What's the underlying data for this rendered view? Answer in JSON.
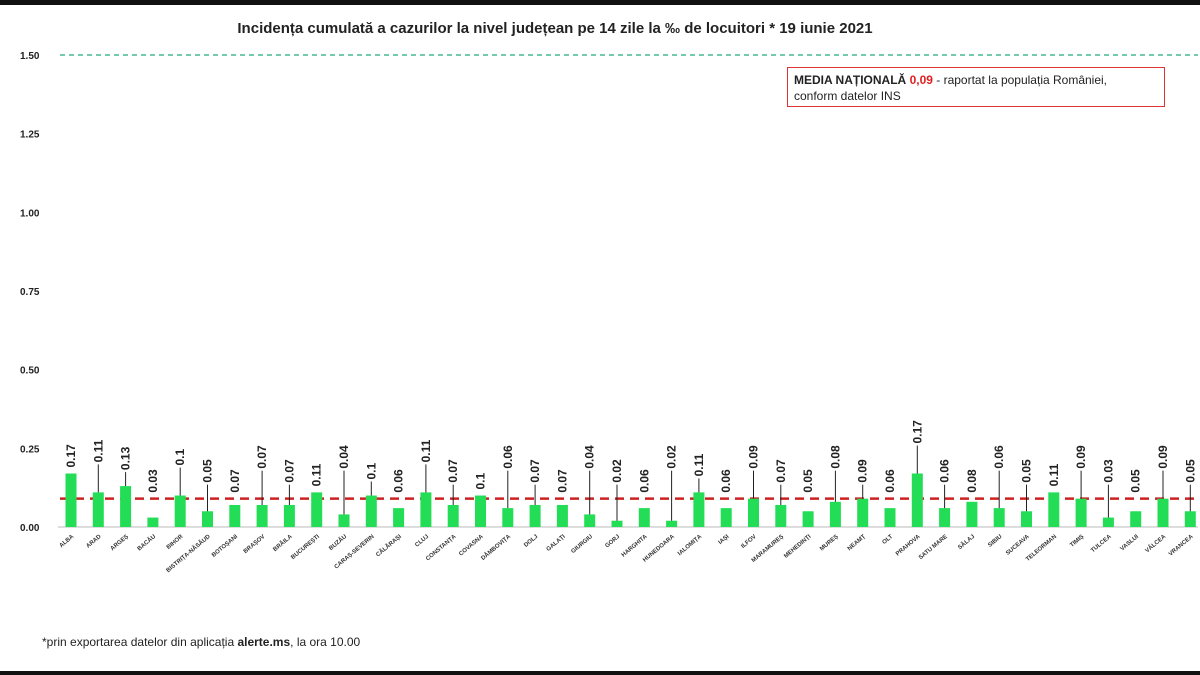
{
  "title": "Incidența cumulată a cazurilor la nivel județean pe 14 zile la ‰ de locuitori *  19 iunie 2021",
  "media_box": {
    "label": "MEDIA NAȚIONALĂ",
    "value": "0,09",
    "text1": " - raportat la populația României,",
    "text2": "conform datelor INS"
  },
  "footnote": {
    "prefix": "*prin exportarea datelor din aplicația ",
    "app": "alerte.ms",
    "suffix": ", la ora 10.00"
  },
  "colors": {
    "bar": "#22dd55",
    "mean_line": "#cc2222",
    "max_line": "#22aa77"
  },
  "chart_data": {
    "type": "bar",
    "title": "Incidența cumulată a cazurilor la nivel județean pe 14 zile la ‰ de locuitori",
    "xlabel": "",
    "ylabel": "",
    "ylim": [
      0,
      1.5
    ],
    "yticks": [
      "0.00",
      "0.25",
      "0.50",
      "0.75",
      "1.00",
      "1.25",
      "1.50"
    ],
    "reference_lines": [
      {
        "name": "Media națională",
        "value": 0.09,
        "style": "red dashed"
      },
      {
        "name": "prag",
        "value": 1.5,
        "style": "green dashed"
      }
    ],
    "categories": [
      "ALBA",
      "ARAD",
      "ARGEȘ",
      "BACĂU",
      "BIHOR",
      "BISTRIȚA-NĂSĂUD",
      "BOTOȘANI",
      "BRAȘOV",
      "BRĂILA",
      "BUCUREȘTI",
      "BUZĂU",
      "CARAȘ-SEVERIN",
      "CĂLĂRAȘI",
      "CLUJ",
      "CONSTANȚA",
      "COVASNA",
      "DÂMBOVIȚA",
      "DOLJ",
      "GALAȚI",
      "GIURGIU",
      "GORJ",
      "HARGHITA",
      "HUNEDOARA",
      "IALOMIȚA",
      "IAȘI",
      "ILFOV",
      "MARAMUREȘ",
      "MEHEDINȚI",
      "MUREȘ",
      "NEAMȚ",
      "OLT",
      "PRAHOVA",
      "SATU MARE",
      "SĂLAJ",
      "SIBIU",
      "SUCEAVA",
      "TELEORMAN",
      "TIMIȘ",
      "TULCEA",
      "VASLUI",
      "VÂLCEA",
      "VRANCEA"
    ],
    "values": [
      0.17,
      0.11,
      0.13,
      0.03,
      0.1,
      0.05,
      0.07,
      0.07,
      0.07,
      0.11,
      0.04,
      0.1,
      0.06,
      0.11,
      0.07,
      0.1,
      0.06,
      0.07,
      0.07,
      0.04,
      0.02,
      0.06,
      0.02,
      0.11,
      0.06,
      0.09,
      0.07,
      0.05,
      0.08,
      0.09,
      0.06,
      0.17,
      0.06,
      0.08,
      0.06,
      0.05,
      0.11,
      0.09,
      0.03,
      0.05,
      0.09,
      0.05
    ],
    "value_labels": [
      "0.17",
      "0.11",
      "0.13",
      "0.03",
      "0.1",
      "0.05",
      "0.07",
      "0.07",
      "0.07",
      "0.11",
      "0.04",
      "0.1",
      "0.06",
      "0.11",
      "0.07",
      "0.1",
      "0.06",
      "0.07",
      "0.07",
      "0.04",
      "0.02",
      "0.06",
      "0.02",
      "0.11",
      "0.06",
      "0.09",
      "0.07",
      "0.05",
      "0.08",
      "0.09",
      "0.06",
      "0.17",
      "0.06",
      "0.08",
      "0.06",
      "0.05",
      "0.11",
      "0.09",
      "0.03",
      "0.05",
      "0.09",
      "0.05"
    ]
  }
}
